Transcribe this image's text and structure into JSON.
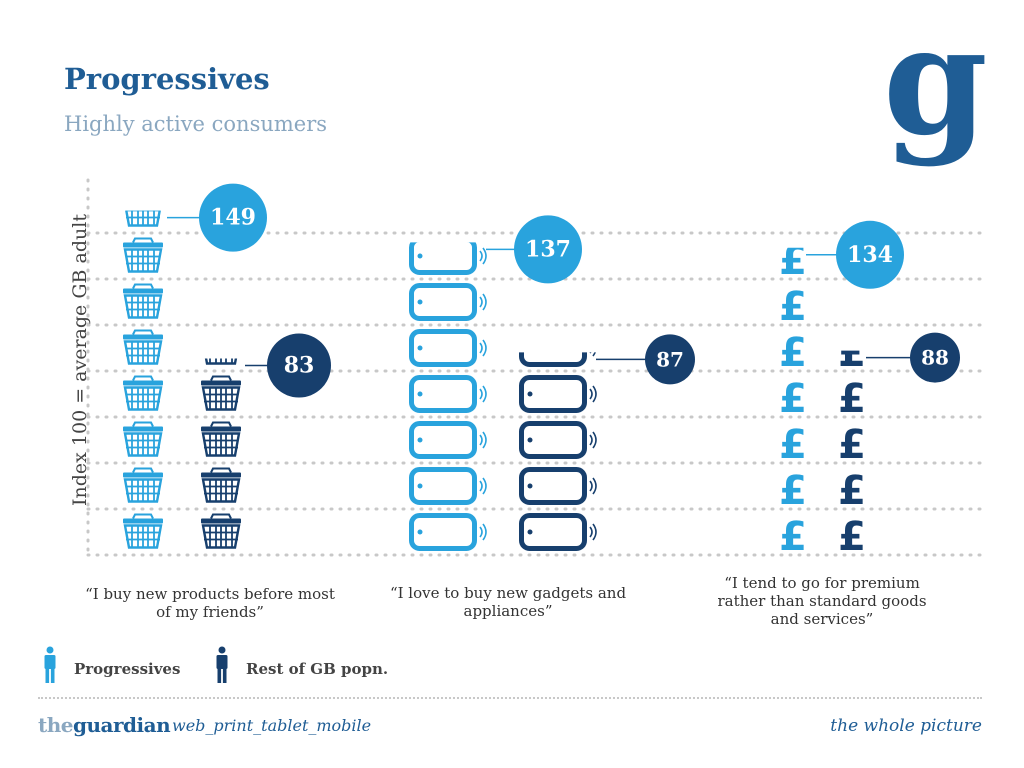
{
  "header": {
    "title": "Progressives",
    "subtitle": "Highly active consumers",
    "logo": "g"
  },
  "colors": {
    "progressives": "#29a3dd",
    "rest": "#173f6d",
    "title": "#1f5d95",
    "subtitle": "#8aa7c0"
  },
  "chart_data": {
    "type": "bar",
    "ylabel": "Index 100 = average GB adult",
    "grid": true,
    "categories": [
      "“I buy new products before most of my friends”",
      "“I love to buy new gadgets and appliances”",
      "“I tend to go for premium rather than standard goods and services”"
    ],
    "category_icons": [
      "basket-icon",
      "phone-icon",
      "pound-icon"
    ],
    "series": [
      {
        "name": "Progressives",
        "values": [
          149,
          137,
          134
        ]
      },
      {
        "name": "Rest of GB popn.",
        "values": [
          83,
          87,
          88
        ]
      }
    ]
  },
  "legend": {
    "progressives": "Progressives",
    "rest": "Rest of GB popn."
  },
  "footer": {
    "brand_the": "the",
    "brand_name": "guardian",
    "tagline": "web_print_tablet_mobile",
    "slogan": "the whole picture"
  }
}
